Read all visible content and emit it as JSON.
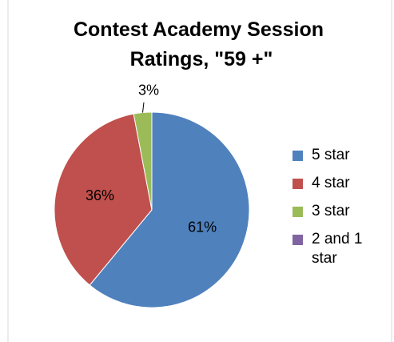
{
  "chart_data": {
    "type": "pie",
    "title": "Contest Academy Session Ratings, \"59 +\"",
    "categories": [
      "5 star",
      "4 star",
      "3 star",
      "2 and 1 star"
    ],
    "values": [
      61,
      36,
      3,
      0
    ],
    "value_labels": [
      "61%",
      "36%",
      "3%",
      null
    ],
    "colors": [
      "#4f81bd",
      "#c0504d",
      "#9bbb59",
      "#8064a2"
    ],
    "legend": "right"
  }
}
